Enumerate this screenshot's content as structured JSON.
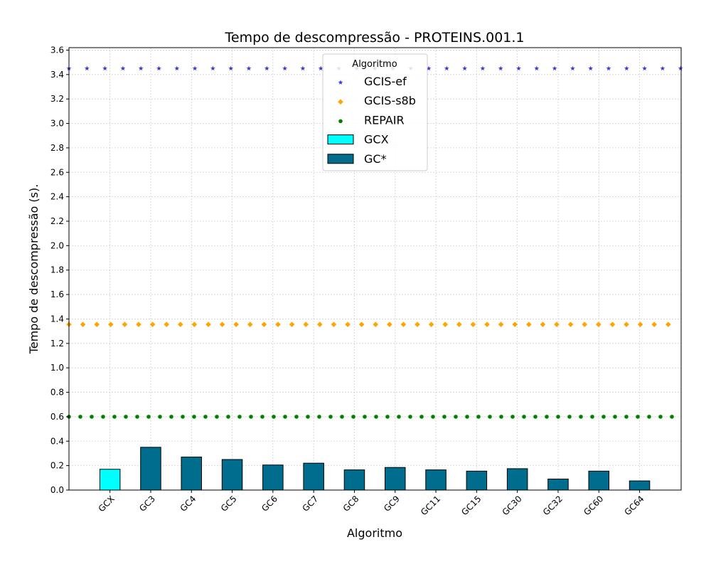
{
  "chart_data": {
    "type": "bar",
    "title": "Tempo de descompressão -  PROTEINS.001.1",
    "xlabel": "Algoritmo",
    "ylabel": "Tempo de descompressão (s).",
    "ylim": [
      0,
      3.62
    ],
    "yticks": [
      "0.0",
      "0.2",
      "0.4",
      "0.6",
      "0.8",
      "1.0",
      "1.2",
      "1.4",
      "1.6",
      "1.8",
      "2.0",
      "2.2",
      "2.4",
      "2.6",
      "2.8",
      "3.0",
      "3.2",
      "3.4",
      "3.6"
    ],
    "grid": true,
    "categories": [
      "GCX",
      "GC3",
      "GC4",
      "GC5",
      "GC6",
      "GC7",
      "GC8",
      "GC9",
      "GC11",
      "GC15",
      "GC30",
      "GC32",
      "GC60",
      "GC64"
    ],
    "bar_series": [
      {
        "name": "GCX",
        "color": "#00ffff",
        "values": [
          0.17,
          null,
          null,
          null,
          null,
          null,
          null,
          null,
          null,
          null,
          null,
          null,
          null,
          null
        ]
      },
      {
        "name": "GC*",
        "color": "#006d8f",
        "values": [
          null,
          0.35,
          0.27,
          0.25,
          0.205,
          0.22,
          0.165,
          0.185,
          0.165,
          0.155,
          0.175,
          0.09,
          0.155,
          0.075
        ]
      }
    ],
    "reference_series": [
      {
        "name": "GCIS-ef",
        "value": 3.45,
        "marker": "star",
        "color": "#3a3ae8"
      },
      {
        "name": "GCIS-s8b",
        "value": 1.355,
        "marker": "diamond",
        "color": "#ffa500"
      },
      {
        "name": "REPAIR",
        "value": 0.6,
        "marker": "circle",
        "color": "#008000"
      }
    ],
    "legend": {
      "title": "Algoritmo",
      "placement": "top-center"
    }
  }
}
